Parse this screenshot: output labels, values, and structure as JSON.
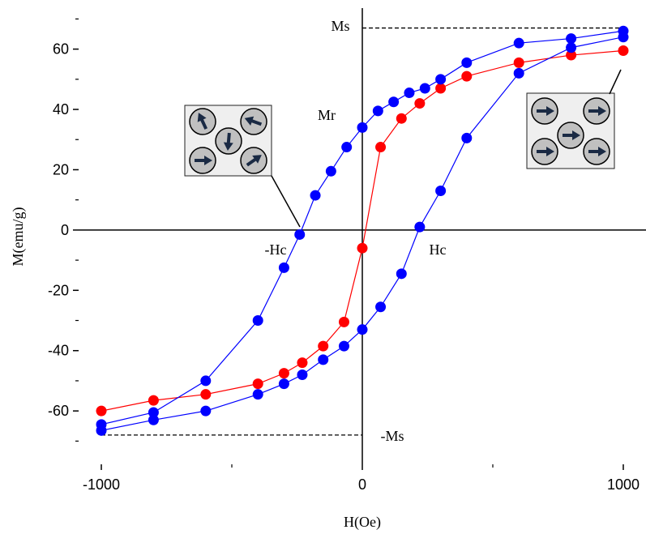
{
  "chart_data": {
    "type": "line",
    "xlabel": "H(Oe)",
    "ylabel": "M(emu/g)",
    "xlim": [
      -1087,
      1087
    ],
    "ylim": [
      -77.7,
      73.6
    ],
    "xticks": [
      -1000,
      0,
      1000
    ],
    "yticks": [
      -60,
      -40,
      -20,
      0,
      20,
      40,
      60
    ],
    "xminorticks": [
      -500,
      500
    ],
    "yminorticks": [
      -70,
      -50,
      -30,
      -10,
      10,
      30,
      50,
      70
    ],
    "series": [
      {
        "color": "#ff0000",
        "x": [
          -1000,
          -800,
          -600,
          -400,
          -300,
          -230,
          -150,
          -70,
          0,
          70,
          150,
          220,
          300,
          400,
          600,
          800,
          1000
        ],
        "values": [
          -60,
          -56.5,
          -54.5,
          -51,
          -47.5,
          -44,
          -38.5,
          -30.5,
          -6,
          27.5,
          37,
          42,
          47,
          51,
          55.5,
          58,
          59.5
        ]
      },
      {
        "color": "#0000ff",
        "x": [
          1000,
          800,
          600,
          400,
          300,
          240,
          180,
          120,
          60,
          0,
          -60,
          -120,
          -180,
          -240,
          -300,
          -400,
          -600,
          -800,
          -1000
        ],
        "values": [
          66,
          63.5,
          62,
          55.5,
          50,
          47,
          45.5,
          42.5,
          39.5,
          34,
          27.5,
          19.5,
          11.5,
          -1.5,
          -12.5,
          -30,
          -50,
          -60.5,
          -64.5
        ]
      },
      {
        "color": "#0000ff",
        "x": [
          -1000,
          -800,
          -600,
          -400,
          -300,
          -230,
          -150,
          -70,
          0,
          70,
          150,
          220,
          300,
          400,
          600,
          800,
          1000
        ],
        "values": [
          -66.5,
          -63,
          -60,
          -54.5,
          -51,
          -48,
          -43,
          -38.5,
          -33,
          -25.5,
          -14.5,
          1,
          13,
          30.5,
          52,
          60.5,
          64
        ]
      }
    ],
    "reference_lines": [
      {
        "y": 67,
        "x": [
          0,
          1000
        ]
      },
      {
        "y": -68,
        "x": [
          -1000,
          0
        ]
      }
    ],
    "annotations": [
      "Ms",
      "Mr",
      "-Hc",
      "Hc",
      "-Ms"
    ]
  }
}
